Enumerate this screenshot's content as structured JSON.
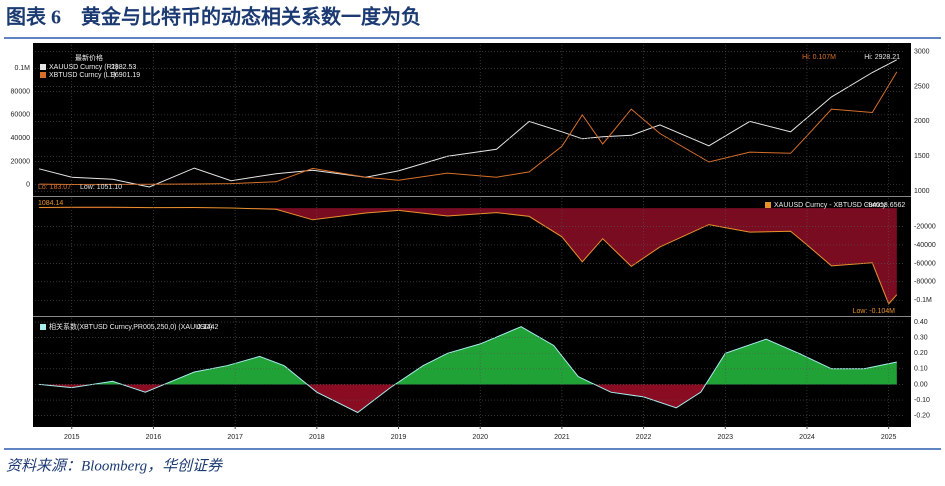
{
  "header": {
    "title": "图表 6　黄金与比特币的动态相关系数一度为负"
  },
  "footer": {
    "source": "资料来源：Bloomberg，华创证券"
  },
  "chart_data": [
    {
      "type": "line",
      "legend_title": "最新价格",
      "yaxis_side": "left",
      "grid": true,
      "x": [
        2014.6,
        2015.0,
        2015.5,
        2015.95,
        2016.5,
        2016.95,
        2017.5,
        2017.95,
        2018.6,
        2019.0,
        2019.6,
        2020.2,
        2020.6,
        2021.0,
        2021.25,
        2021.5,
        2021.85,
        2022.2,
        2022.8,
        2023.3,
        2023.8,
        2024.0,
        2024.3,
        2024.8,
        2025.1
      ],
      "series": [
        {
          "name": "XAUUSD Curncy (R1)",
          "color": "#e6e6e6",
          "axis": "y2",
          "values": [
            1320,
            1200,
            1170,
            1060,
            1330,
            1150,
            1250,
            1300,
            1200,
            1290,
            1500,
            1600,
            2000,
            1850,
            1750,
            1780,
            1800,
            1950,
            1650,
            2000,
            1850,
            2050,
            2350,
            2700,
            2882.53
          ]
        },
        {
          "name": "XBTUSD Curncy (L1)",
          "color": "#d9702a",
          "values": [
            600,
            250,
            260,
            430,
            650,
            960,
            2500,
            14000,
            6500,
            3800,
            10000,
            6500,
            11000,
            33000,
            60000,
            35000,
            65000,
            44000,
            19500,
            28000,
            27000,
            42000,
            65000,
            62000,
            96901.19
          ]
        }
      ],
      "xlim": [
        2014.55,
        2025.2
      ],
      "xticks": [
        2015,
        2016,
        2017,
        2018,
        2019,
        2020,
        2021,
        2022,
        2023,
        2024,
        2025
      ],
      "ylim": [
        -8800,
        120000
      ],
      "yticks": [
        0,
        20000,
        40000,
        60000,
        80000,
        {
          "value": 100000,
          "label": "0.1M"
        }
      ],
      "y2lim": [
        945,
        3094
      ],
      "y2ticks": [
        1000,
        1500,
        2000,
        2500,
        3000
      ],
      "annotations": [
        {
          "text": "Hi: 0.107M",
          "color": "#d9702a"
        },
        {
          "text": "Hi: 2928.21",
          "color": "#e6e6e6"
        },
        {
          "text": "Lo: 183.07",
          "color": "#d9702a"
        },
        {
          "text": "Low: 1051.10",
          "color": "#e6e6e6"
        }
      ]
    },
    {
      "type": "area",
      "yaxis_side": "right",
      "grid": true,
      "fill_color": "#7a0c22",
      "x": [
        2014.6,
        2015.0,
        2015.5,
        2015.95,
        2016.5,
        2016.95,
        2017.5,
        2017.95,
        2018.6,
        2019.0,
        2019.6,
        2020.2,
        2020.6,
        2021.0,
        2021.25,
        2021.5,
        2021.85,
        2022.2,
        2022.8,
        2023.3,
        2023.8,
        2024.0,
        2024.3,
        2024.8,
        2025.0,
        2025.1
      ],
      "series": [
        {
          "name": "XAUUSD Curncy - XBTUSD Curncy",
          "color": "#e8922c",
          "values": [
            720,
            950,
            910,
            630,
            680,
            190,
            -1250,
            -12700,
            -5300,
            -2510,
            -8500,
            -4900,
            -9000,
            -31150,
            -58250,
            -33220,
            -63200,
            -42050,
            -17850,
            -26000,
            -25150,
            -39950,
            -62650,
            -59300,
            -104000,
            -94018.6562
          ]
        }
      ],
      "xlim": [
        2014.55,
        2025.2
      ],
      "xticks": [
        2015,
        2016,
        2017,
        2018,
        2019,
        2020,
        2021,
        2022,
        2023,
        2024,
        2025
      ],
      "ylim": [
        -116000,
        11000
      ],
      "yticks": [
        -20000,
        -40000,
        -60000,
        -80000,
        {
          "value": -100000,
          "label": "-0.1M"
        }
      ],
      "annotations": [
        {
          "text": "1084.14",
          "color": "#e8922c"
        },
        {
          "text": "Low: -0.104M",
          "color": "#e8922c"
        }
      ]
    },
    {
      "type": "area",
      "yaxis_side": "right",
      "grid": true,
      "positive_color": "#21a236",
      "negative_color": "#8a0c22",
      "x": [
        2014.6,
        2015.0,
        2015.5,
        2015.9,
        2016.5,
        2016.9,
        2017.3,
        2017.6,
        2018.0,
        2018.5,
        2018.9,
        2019.3,
        2019.6,
        2020.0,
        2020.5,
        2020.9,
        2021.2,
        2021.6,
        2022.0,
        2022.4,
        2022.7,
        2023.0,
        2023.5,
        2023.9,
        2024.3,
        2024.7,
        2025.1
      ],
      "series": [
        {
          "name": "相关系数(XBTUSD Curncy,PR005,250,0) (XAUUSD)",
          "color": "#a8ecec",
          "values": [
            0,
            -0.02,
            0.02,
            -0.05,
            0.08,
            0.12,
            0.18,
            0.12,
            -0.05,
            -0.18,
            -0.02,
            0.12,
            0.2,
            0.26,
            0.37,
            0.25,
            0.05,
            -0.05,
            -0.08,
            -0.15,
            -0.05,
            0.2,
            0.29,
            0.2,
            0.1,
            0.1,
            0.1442
          ]
        }
      ],
      "xlim": [
        2014.55,
        2025.2
      ],
      "xticks": [
        2015,
        2016,
        2017,
        2018,
        2019,
        2020,
        2021,
        2022,
        2023,
        2024,
        2025
      ],
      "ylim": [
        -0.26,
        0.426
      ],
      "yticks": [
        {
          "value": 0.4,
          "label": "0.40"
        },
        {
          "value": 0.3,
          "label": "0.30"
        },
        {
          "value": 0.2,
          "label": "0.20"
        },
        {
          "value": 0.1,
          "label": "0.10"
        },
        {
          "value": 0,
          "label": "0.00"
        },
        {
          "value": -0.1,
          "label": "-0.10"
        },
        {
          "value": -0.2,
          "label": "-0.20"
        }
      ]
    }
  ]
}
